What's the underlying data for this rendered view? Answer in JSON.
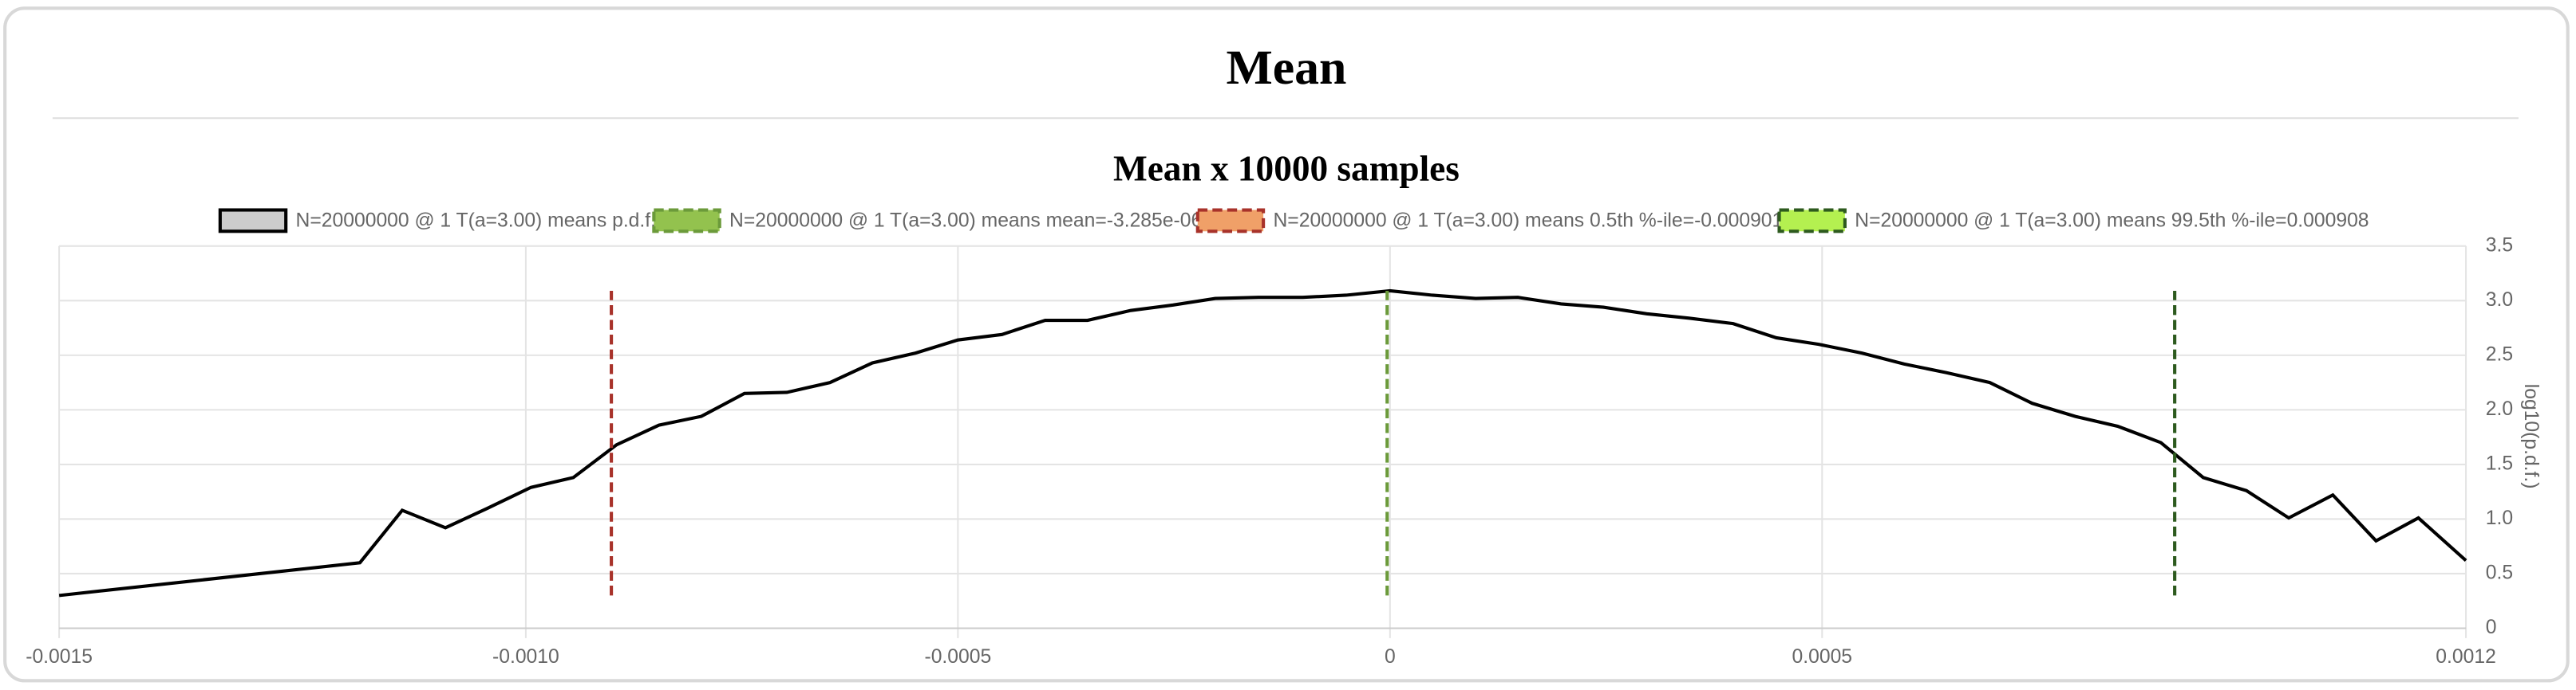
{
  "header": {
    "title": "Mean"
  },
  "chart_data": {
    "type": "line",
    "title": "Mean x 10000 samples",
    "ylabel": "log10(p.d.f.)",
    "y_axis_side": "right",
    "grid": true,
    "xlim": [
      -0.00154,
      0.001245
    ],
    "xticks": [
      {
        "value": -0.00154,
        "label": "-0.0015"
      },
      {
        "value": -0.001,
        "label": "-0.0010"
      },
      -0.0005,
      0,
      0.0005,
      {
        "value": 0.001245,
        "label": "0.0012"
      }
    ],
    "ylim": [
      0,
      3.5
    ],
    "yticks": [
      0,
      0.5,
      {
        "value": 1.0,
        "label": "1.0"
      },
      1.5,
      {
        "value": 2.0,
        "label": "2.0"
      },
      2.5,
      {
        "value": 3.0,
        "label": "3.0"
      },
      3.5
    ],
    "series": [
      {
        "name": "N=20000000 @ 1 T(a=3.00) means p.d.f.",
        "color": "#000000",
        "legend_fill": "#cccccc",
        "dashed": false,
        "x": [
          -0.00154,
          -0.001192,
          -0.001143,
          -0.001093,
          -0.001044,
          -0.000994,
          -0.000945,
          -0.000895,
          -0.000846,
          -0.000797,
          -0.000747,
          -0.000698,
          -0.000648,
          -0.000599,
          -0.000549,
          -0.0005,
          -0.000449,
          -0.000399,
          -0.00035,
          -0.0003,
          -0.000251,
          -0.000202,
          -0.000152,
          -0.000101,
          -5.1e-05,
          0,
          4.9e-05,
          9.9e-05,
          0.000148,
          0.000198,
          0.000247,
          0.000297,
          0.000346,
          0.000397,
          0.000447,
          0.000496,
          0.000546,
          0.000595,
          0.000644,
          0.000694,
          0.000743,
          0.000793,
          0.000842,
          0.000892,
          0.000941,
          0.000991,
          0.00104,
          0.001091,
          0.001141,
          0.00119,
          0.001245
        ],
        "values": [
          0.3,
          0.6,
          1.08,
          0.92,
          1.1,
          1.29,
          1.38,
          1.68,
          1.86,
          1.94,
          2.15,
          2.16,
          2.25,
          2.43,
          2.52,
          2.64,
          2.69,
          2.82,
          2.82,
          2.91,
          2.96,
          3.02,
          3.03,
          3.03,
          3.05,
          3.09,
          3.05,
          3.02,
          3.03,
          2.97,
          2.94,
          2.88,
          2.84,
          2.79,
          2.66,
          2.6,
          2.52,
          2.42,
          2.34,
          2.25,
          2.06,
          1.94,
          1.85,
          1.7,
          1.38,
          1.26,
          1.01,
          1.22,
          0.8,
          1.01,
          0.62
        ]
      },
      {
        "name": "N=20000000 @ 1 T(a=3.00) means mean=-3.285e-06",
        "color": "#6b9a3a",
        "legend_fill": "#93c24e",
        "dashed": true,
        "x": [
          -3.285e-06,
          -3.285e-06
        ],
        "values": [
          0.3,
          3.09
        ]
      },
      {
        "name": "N=20000000 @ 1 T(a=3.00) means 0.5th %-ile=-0.000901",
        "color": "#a8322a",
        "legend_fill": "#f0a068",
        "dashed": true,
        "x": [
          -0.000901,
          -0.000901
        ],
        "values": [
          0.3,
          3.09
        ]
      },
      {
        "name": "N=20000000 @ 1 T(a=3.00) means 99.5th %-ile=0.000908",
        "color": "#2d5a1e",
        "legend_fill": "#b4f050",
        "dashed": true,
        "x": [
          0.000908,
          0.000908
        ],
        "values": [
          0.3,
          3.09
        ]
      }
    ]
  }
}
